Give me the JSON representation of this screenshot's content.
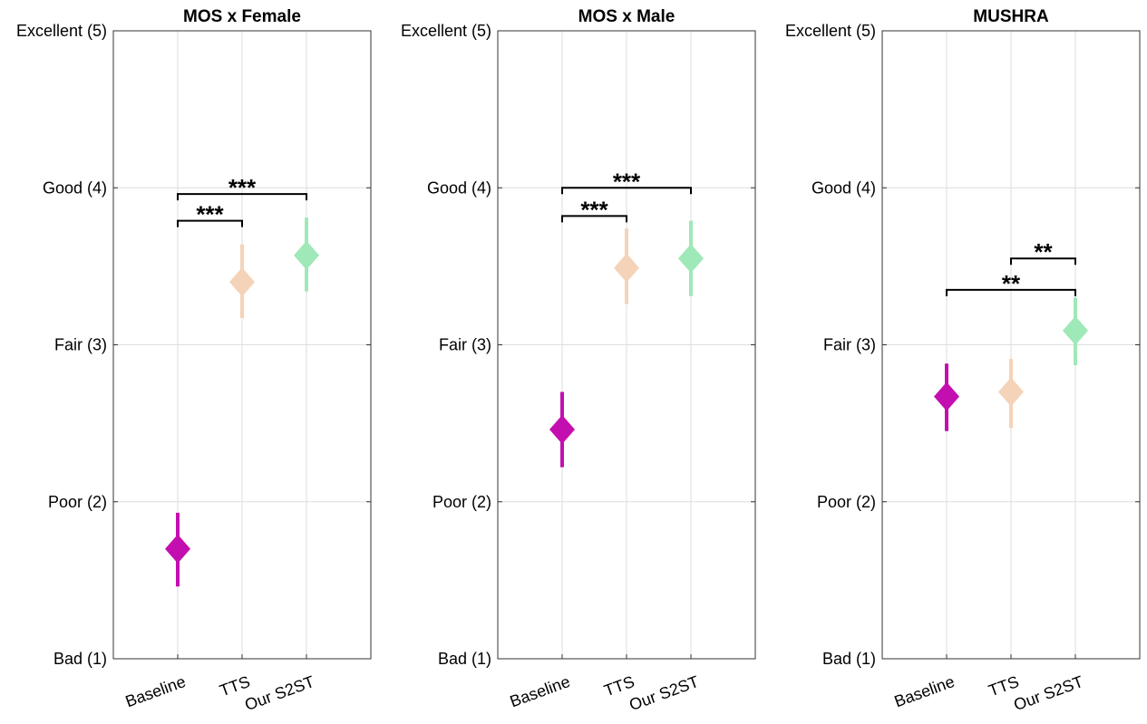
{
  "chart_data": [
    {
      "type": "scatter",
      "title": "MOS x Female",
      "categories": [
        "Baseline",
        "TTS",
        "Our S2ST"
      ],
      "ylim": [
        1,
        5
      ],
      "yticks": [
        1,
        2,
        3,
        4,
        5
      ],
      "ytick_labels": [
        "Bad (1)",
        "Poor (2)",
        "Fair (3)",
        "Good (4)",
        "Excellent (5)"
      ],
      "grid": true,
      "points": [
        {
          "category": "Baseline",
          "mean": 1.7,
          "ci_low": 1.46,
          "ci_high": 1.93,
          "color": "#c40fb0"
        },
        {
          "category": "TTS",
          "mean": 3.4,
          "ci_low": 3.17,
          "ci_high": 3.64,
          "color": "#f5d3b8"
        },
        {
          "category": "Our S2ST",
          "mean": 3.57,
          "ci_low": 3.34,
          "ci_high": 3.81,
          "color": "#9fe8b8"
        }
      ],
      "significance": [
        {
          "from": "Baseline",
          "to": "TTS",
          "y": 3.79,
          "label": "***"
        },
        {
          "from": "Baseline",
          "to": "Our S2ST",
          "y": 3.96,
          "label": "***"
        }
      ]
    },
    {
      "type": "scatter",
      "title": "MOS x Male",
      "categories": [
        "Baseline",
        "TTS",
        "Our S2ST"
      ],
      "ylim": [
        1,
        5
      ],
      "yticks": [
        1,
        2,
        3,
        4,
        5
      ],
      "ytick_labels": [
        "Bad (1)",
        "Poor (2)",
        "Fair (3)",
        "Good (4)",
        "Excellent (5)"
      ],
      "grid": true,
      "points": [
        {
          "category": "Baseline",
          "mean": 2.46,
          "ci_low": 2.22,
          "ci_high": 2.7,
          "color": "#c40fb0"
        },
        {
          "category": "TTS",
          "mean": 3.49,
          "ci_low": 3.26,
          "ci_high": 3.74,
          "color": "#f5d3b8"
        },
        {
          "category": "Our S2ST",
          "mean": 3.55,
          "ci_low": 3.31,
          "ci_high": 3.79,
          "color": "#9fe8b8"
        }
      ],
      "significance": [
        {
          "from": "Baseline",
          "to": "TTS",
          "y": 3.82,
          "label": "***"
        },
        {
          "from": "Baseline",
          "to": "Our S2ST",
          "y": 4.0,
          "label": "***"
        }
      ]
    },
    {
      "type": "scatter",
      "title": "MUSHRA",
      "categories": [
        "Baseline",
        "TTS",
        "Our S2ST"
      ],
      "ylim": [
        1,
        5
      ],
      "yticks": [
        1,
        2,
        3,
        4,
        5
      ],
      "ytick_labels": [
        "Bad (1)",
        "Poor (2)",
        "Fair (3)",
        "Good (4)",
        "Excellent (5)"
      ],
      "grid": true,
      "points": [
        {
          "category": "Baseline",
          "mean": 2.67,
          "ci_low": 2.45,
          "ci_high": 2.88,
          "color": "#c40fb0"
        },
        {
          "category": "TTS",
          "mean": 2.7,
          "ci_low": 2.47,
          "ci_high": 2.91,
          "color": "#f5d3b8"
        },
        {
          "category": "Our S2ST",
          "mean": 3.09,
          "ci_low": 2.87,
          "ci_high": 3.3,
          "color": "#9fe8b8"
        }
      ],
      "significance": [
        {
          "from": "TTS",
          "to": "Our S2ST",
          "y": 3.55,
          "label": "**"
        },
        {
          "from": "Baseline",
          "to": "Our S2ST",
          "y": 3.35,
          "label": "**"
        }
      ]
    }
  ]
}
